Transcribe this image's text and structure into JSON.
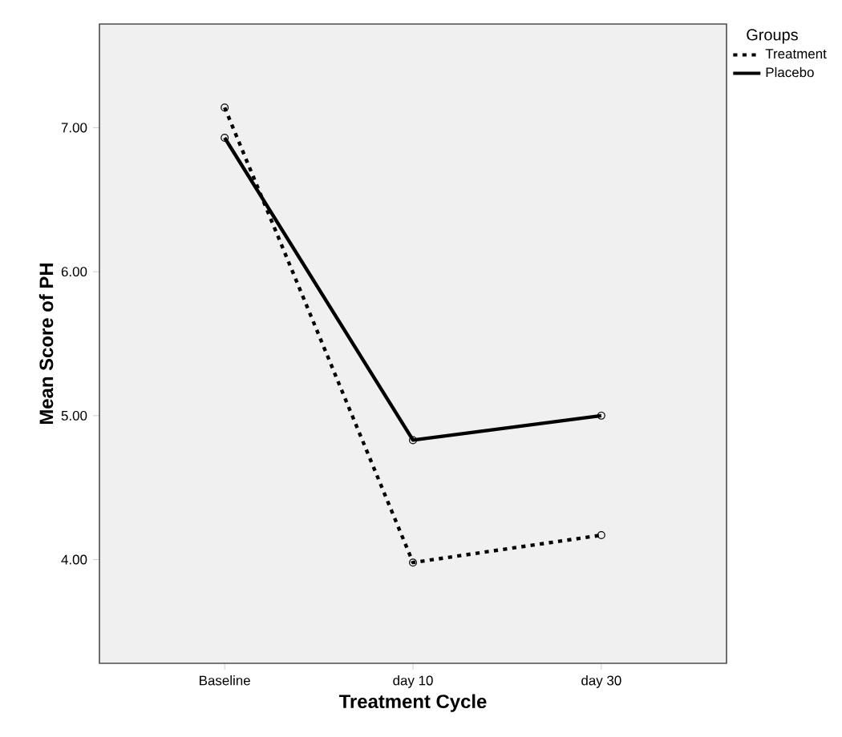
{
  "chart_data": {
    "type": "line",
    "xlabel": "Treatment Cycle",
    "ylabel": "Mean Score of PH",
    "legend_title": "Groups",
    "categories": [
      "Baseline",
      "day 10",
      "day 30"
    ],
    "series": [
      {
        "name": "Treatment",
        "color": "#000000",
        "values": [
          7.14,
          3.98,
          4.17
        ],
        "line_style": "dotted"
      },
      {
        "name": "Placebo",
        "color": "#000000",
        "values": [
          6.93,
          4.83,
          5.0
        ],
        "line_style": "solid"
      }
    ],
    "ylim": [
      3.28,
      7.72
    ],
    "yticks": [
      {
        "value": 4,
        "label": "4.00"
      },
      {
        "value": 5,
        "label": "5.00"
      },
      {
        "value": 6,
        "label": "6.00"
      },
      {
        "value": 7,
        "label": "7.00"
      }
    ],
    "marker": "circle",
    "legend": "top right",
    "grid": false
  }
}
